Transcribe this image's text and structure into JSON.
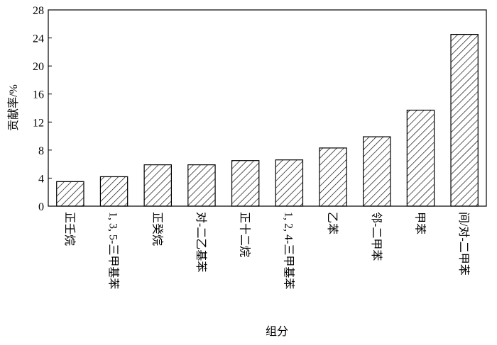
{
  "chart_data": {
    "type": "bar",
    "categories": [
      "正壬烷",
      "1, 3, 5-三甲基苯",
      "正癸烷",
      "对-二乙基苯",
      "正十二烷",
      "1, 2, 4-三甲基苯",
      "乙苯",
      "邻-二甲苯",
      "甲苯",
      "间/对-二甲苯"
    ],
    "values": [
      3.5,
      4.2,
      5.9,
      5.9,
      6.5,
      6.6,
      8.3,
      9.9,
      13.7,
      24.5
    ],
    "color": "#000000",
    "xlabel": "组分",
    "ylabel": "贡献率/%",
    "ylim": [
      0,
      28
    ],
    "yticks": [
      0,
      4,
      8,
      12,
      16,
      20,
      24,
      28
    ],
    "grid": false
  }
}
